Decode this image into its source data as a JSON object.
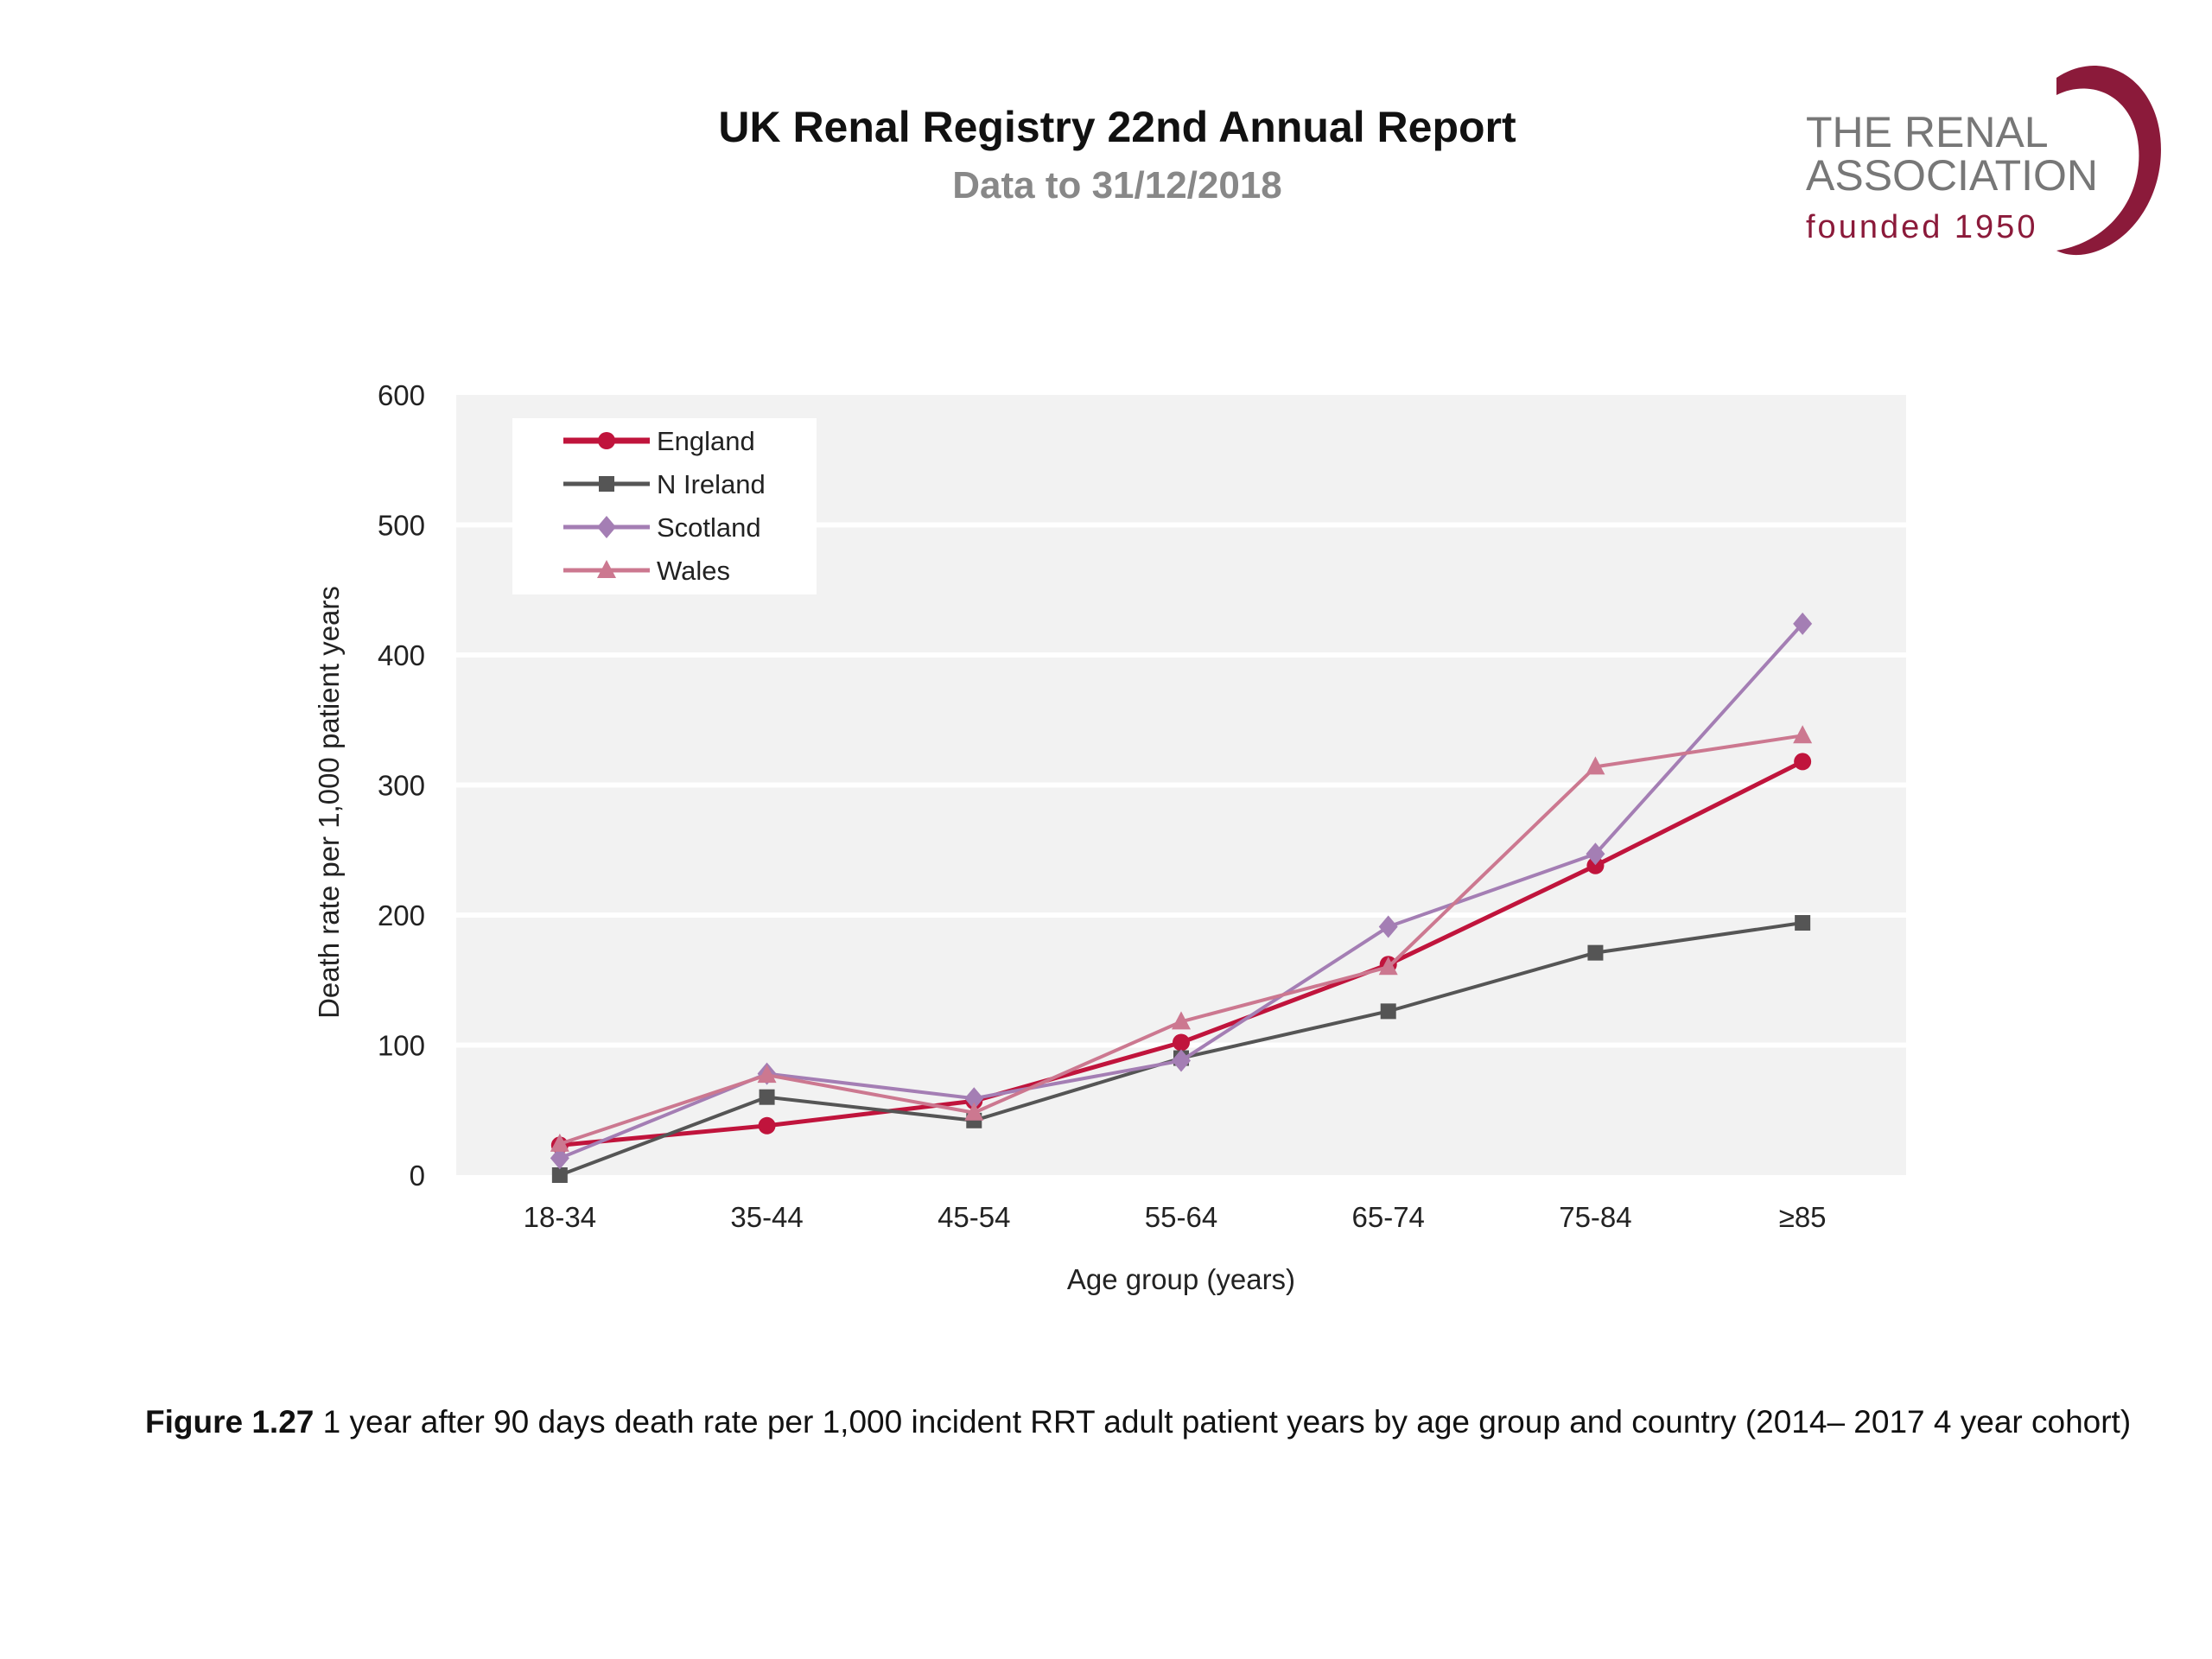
{
  "header": {
    "title": "UK Renal Registry 22nd Annual Report",
    "subtitle": "Data to 31/12/2018"
  },
  "logo": {
    "line1": "THE RENAL",
    "line2": "ASSOCIATION",
    "line3": "founded 1950",
    "color": "#8b1a3a"
  },
  "caption": {
    "label": "Figure 1.27",
    "text": " 1 year after 90 days death rate per 1,000 incident RRT adult patient years by age group and country (2014– 2017 4 year cohort)"
  },
  "chart_data": {
    "type": "line",
    "xlabel": "Age group (years)",
    "ylabel": "Death rate per 1,000 patient years",
    "categories": [
      "18-34",
      "35-44",
      "45-54",
      "55-64",
      "65-74",
      "75-84",
      "≥85"
    ],
    "ylim": [
      0,
      600
    ],
    "yticks": [
      0,
      100,
      200,
      300,
      400,
      500,
      600
    ],
    "grid": true,
    "legend": "top-left",
    "series": [
      {
        "name": "England",
        "color": "#c0143c",
        "marker": "circle",
        "values": [
          23,
          38,
          57,
          102,
          162,
          238,
          318
        ]
      },
      {
        "name": "N Ireland",
        "color": "#555555",
        "marker": "square",
        "values": [
          0,
          60,
          42,
          90,
          126,
          171,
          194
        ]
      },
      {
        "name": "Scotland",
        "color": "#a47eb4",
        "marker": "diamond",
        "values": [
          13,
          78,
          59,
          88,
          191,
          247,
          424
        ]
      },
      {
        "name": "Wales",
        "color": "#cc7890",
        "marker": "triangle",
        "values": [
          24,
          77,
          48,
          118,
          160,
          314,
          338
        ]
      }
    ]
  }
}
